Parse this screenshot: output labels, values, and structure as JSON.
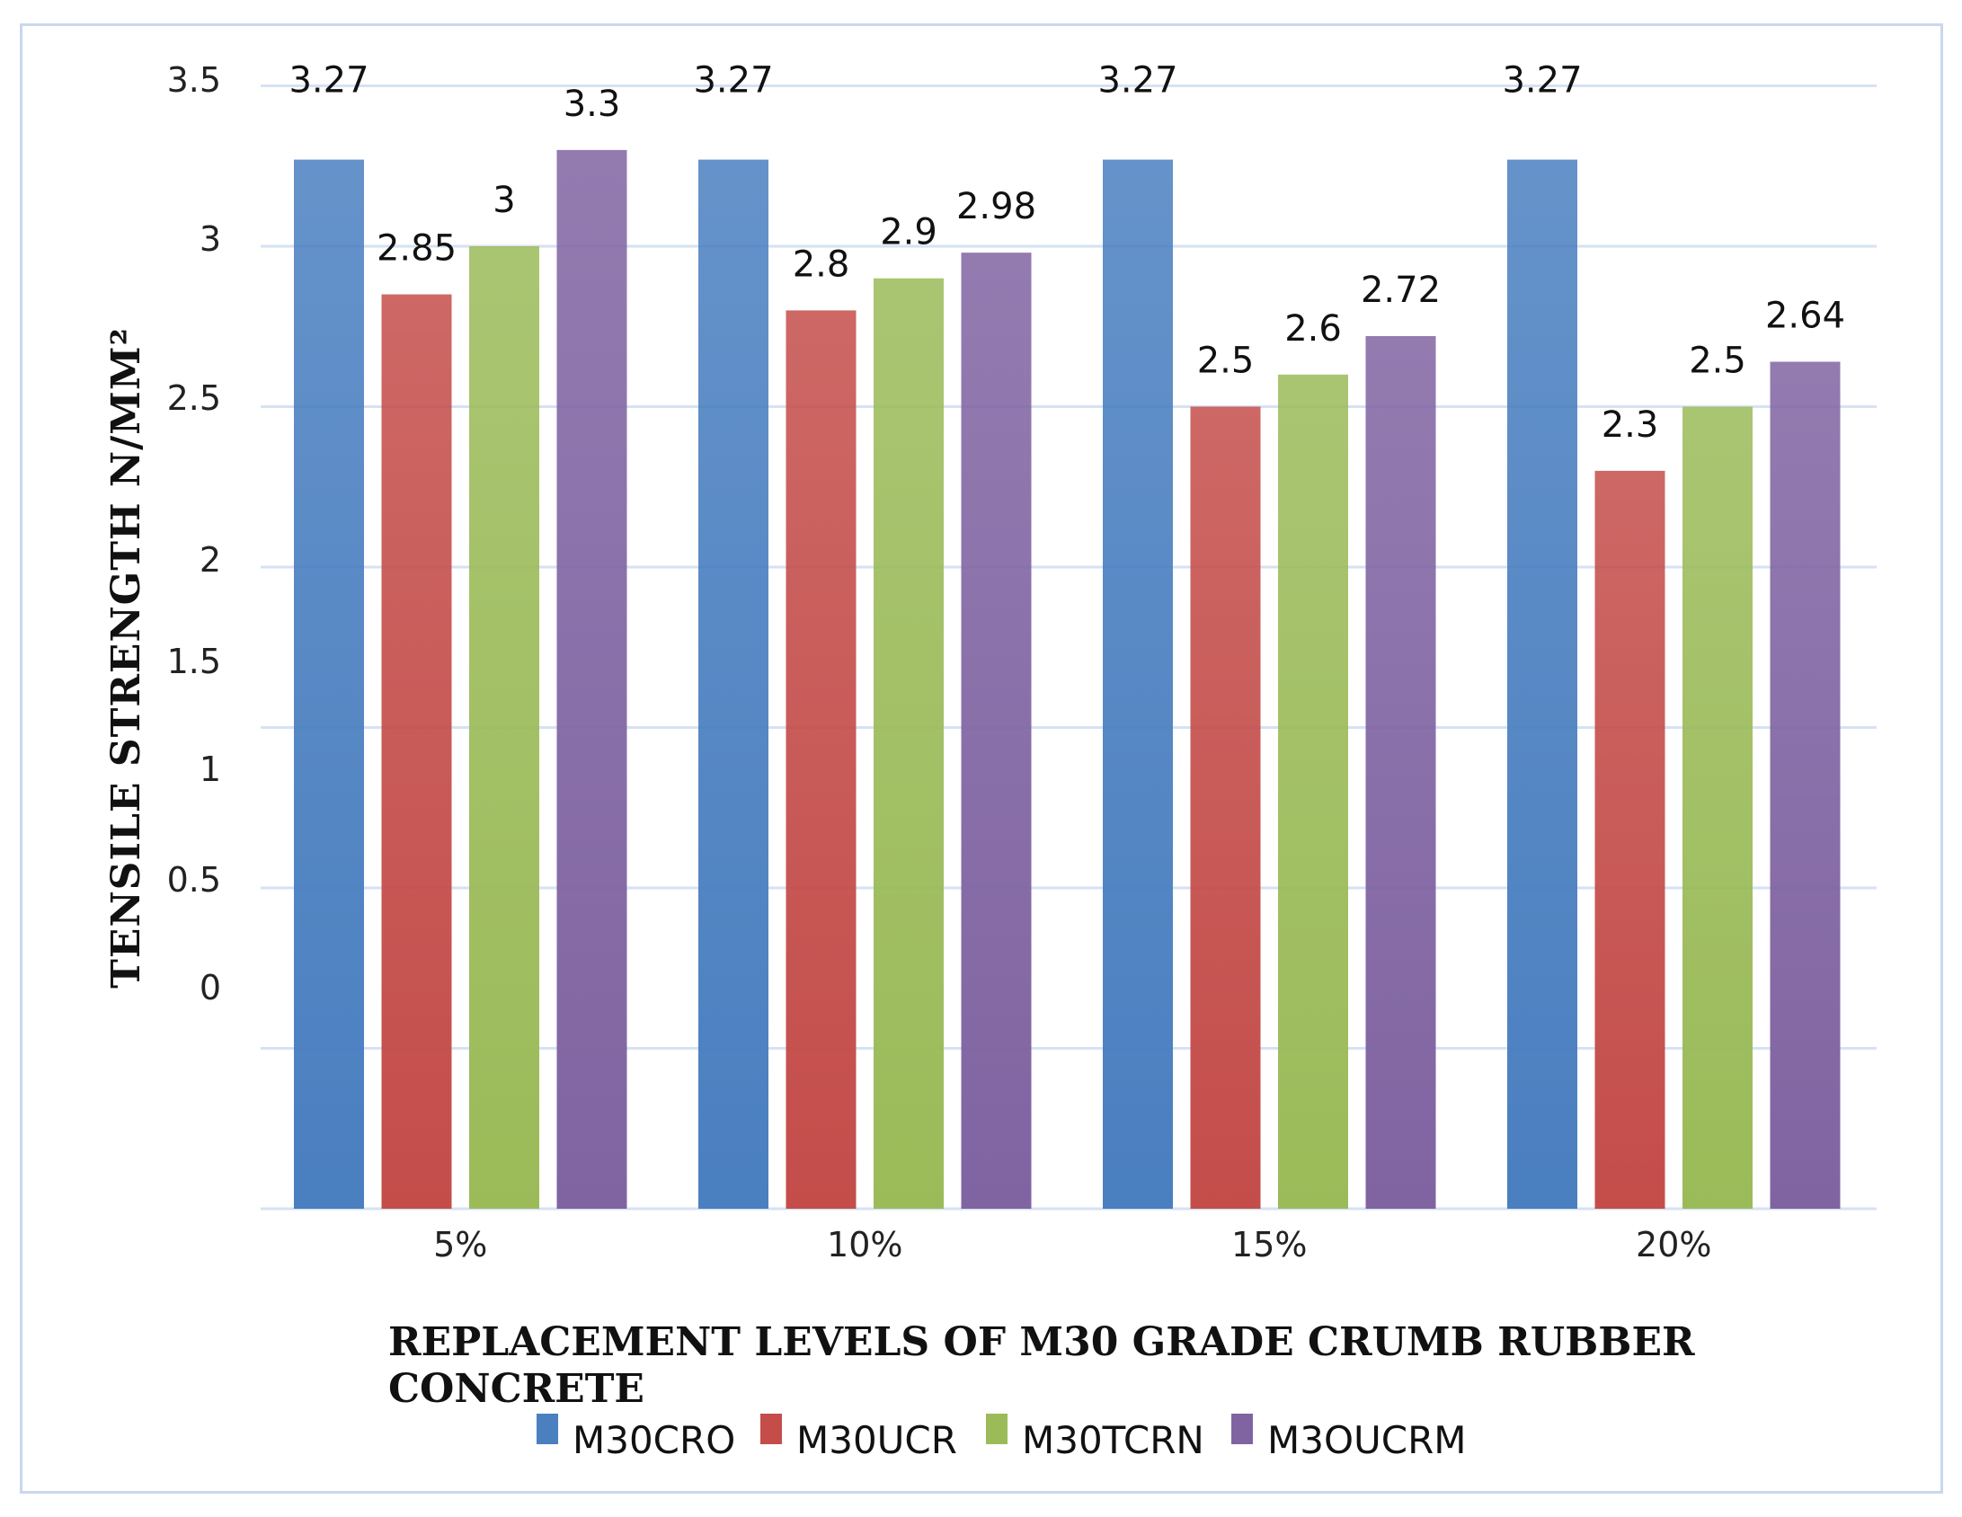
{
  "chart_data": {
    "type": "bar",
    "title": "",
    "categories": [
      "5%",
      "10%",
      "15%",
      "20%"
    ],
    "series": [
      {
        "name": "M30CRO",
        "color": "#4a7fc0",
        "values": [
          3.27,
          3.27,
          3.27,
          3.27
        ]
      },
      {
        "name": "M30UCR",
        "color": "#c44d4a",
        "values": [
          2.85,
          2.8,
          2.5,
          2.3
        ]
      },
      {
        "name": "M30TCRN",
        "color": "#9bbb59",
        "values": [
          3,
          2.9,
          2.6,
          2.5
        ]
      },
      {
        "name": "M3OUCRM",
        "color": "#8064a2",
        "values": [
          3.3,
          2.98,
          2.72,
          2.64
        ]
      }
    ],
    "ylabel": "TENSILE STRENGTH N/MM²",
    "xlabel_lines": [
      "REPLACEMENT LEVELS OF M30 GRADE CRUMB RUBBER",
      "CONCRETE"
    ],
    "ylim": [
      0,
      3.5
    ],
    "y_ticks": [
      "3.5",
      "3",
      "2.5",
      "2",
      "1.5",
      "1",
      "0.5",
      "0"
    ],
    "grid": true,
    "legend_position": "bottom"
  }
}
